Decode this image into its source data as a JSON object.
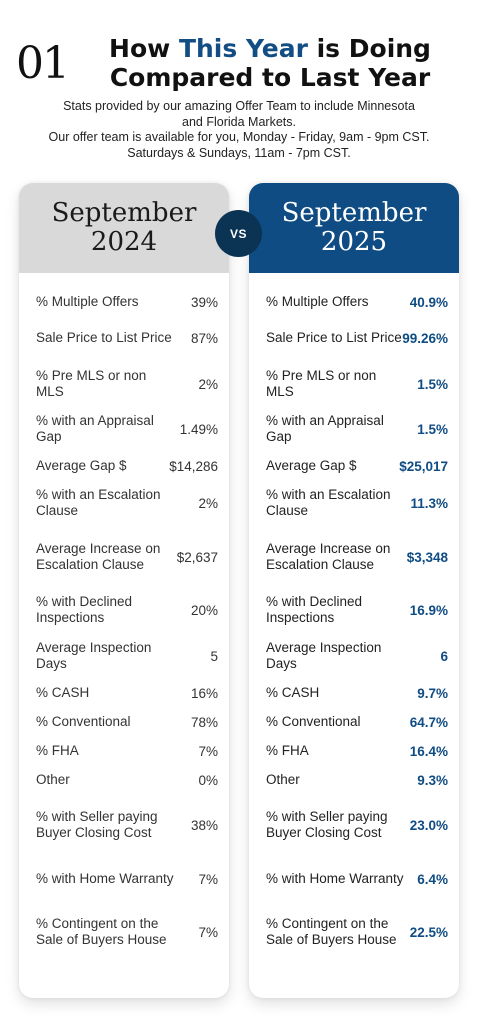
{
  "header": {
    "number": "01",
    "title_line1_pre": "How ",
    "title_highlight": "This Year",
    "title_line1_post": " is Doing",
    "title_line2": "Compared to Last Year",
    "subtitle_lines": [
      "Stats provided by our amazing Offer Team to include Minnesota",
      "and Florida Markets.",
      "Our offer team is available for you, Monday - Friday, 9am - 9pm CST.",
      "Saturdays & Sundays, 11am - 7pm CST."
    ]
  },
  "vs_label": "VS",
  "colors": {
    "accent": "#0f4c83",
    "vs_circle": "#0b3354",
    "left_header": "#d9d9d9"
  },
  "left": {
    "month": "September",
    "year": "2024",
    "rows": [
      {
        "label": "% Multiple Offers",
        "value": "39%"
      },
      {
        "label": "Sale Price to List Price",
        "value": "87%"
      },
      {
        "label": "% Pre MLS or non MLS",
        "value": "2%"
      },
      {
        "label": "% with an Appraisal Gap",
        "value": "1.49%"
      },
      {
        "label": "Average Gap $",
        "value": "$14,286"
      },
      {
        "label": "% with an Escalation Clause",
        "value": "2%"
      },
      {
        "label": "Average Increase on Escalation Clause",
        "value": "$2,637"
      },
      {
        "label": "% with Declined Inspections",
        "value": "20%"
      },
      {
        "label": "Average Inspection Days",
        "value": "5"
      },
      {
        "label": "% CASH",
        "value": "16%"
      },
      {
        "label": "% Conventional",
        "value": "78%"
      },
      {
        "label": "% FHA",
        "value": "7%"
      },
      {
        "label": "Other",
        "value": "0%"
      },
      {
        "label": "% with Seller paying Buyer Closing Cost",
        "value": "38%"
      },
      {
        "label": "% with Home Warranty",
        "value": "7%"
      },
      {
        "label": "% Contingent on the Sale of Buyers House",
        "value": "7%"
      }
    ]
  },
  "right": {
    "month": "September",
    "year": "2025",
    "rows": [
      {
        "label": "% Multiple Offers",
        "value": "40.9%"
      },
      {
        "label": "Sale Price to List Price",
        "value": "99.26%"
      },
      {
        "label": "% Pre MLS or non MLS",
        "value": "1.5%"
      },
      {
        "label": "% with an Appraisal Gap",
        "value": "1.5%"
      },
      {
        "label": "Average Gap $",
        "value": "$25,017"
      },
      {
        "label": "% with an Escalation Clause",
        "value": "11.3%"
      },
      {
        "label": "Average Increase on Escalation Clause",
        "value": "$3,348"
      },
      {
        "label": "% with Declined Inspections",
        "value": "16.9%"
      },
      {
        "label": "Average Inspection Days",
        "value": "6"
      },
      {
        "label": "% CASH",
        "value": "9.7%"
      },
      {
        "label": "% Conventional",
        "value": "64.7%"
      },
      {
        "label": "% FHA",
        "value": "16.4%"
      },
      {
        "label": "Other",
        "value": "9.3%"
      },
      {
        "label": "% with Seller paying Buyer Closing Cost",
        "value": "23.0%"
      },
      {
        "label": "% with Home Warranty",
        "value": "6.4%"
      },
      {
        "label": "% Contingent on the Sale of Buyers House",
        "value": "22.5%"
      }
    ]
  }
}
